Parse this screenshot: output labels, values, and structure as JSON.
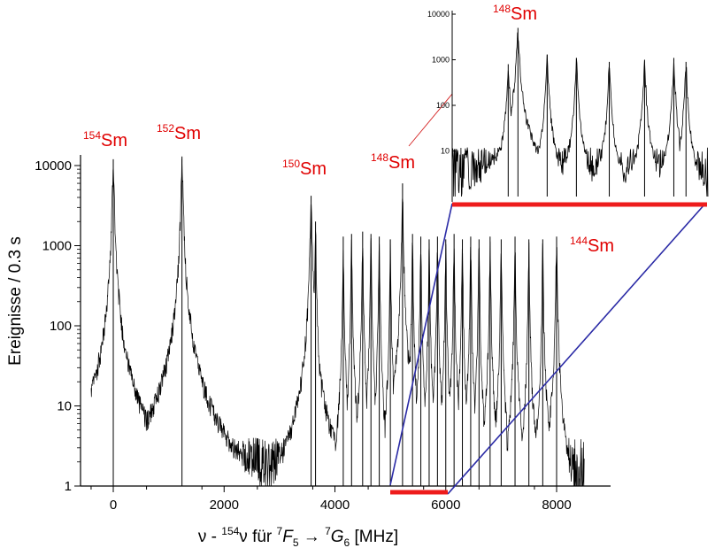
{
  "chart_data": [
    {
      "type": "line",
      "scale_y": "log",
      "xlim": [
        -400,
        8500
      ],
      "ylim": [
        1,
        20000
      ],
      "xticks": [
        "0",
        "2000",
        "4000",
        "6000",
        "8000"
      ],
      "xtick_values": [
        0,
        2000,
        4000,
        6000,
        8000
      ],
      "yticks": [
        "1",
        "10",
        "100",
        "1000",
        "10000"
      ],
      "ytick_values": [
        1,
        10,
        100,
        1000,
        10000
      ],
      "ylabel": "Ereignisse / 0.3 s",
      "xlabel": {
        "p1": "ν - ",
        "sup1": "154",
        "p2": "ν für ",
        "sup2": "7",
        "p3": "F",
        "sub3": "5",
        "arrow": " → ",
        "sup4": "7",
        "p5": "G",
        "sub5": "6",
        "p6": " [MHz]"
      },
      "baseline_noise": [
        1,
        4
      ],
      "peaks": [
        {
          "x": 0,
          "y": 12000,
          "width": 40,
          "isotope": "154Sm"
        },
        {
          "x": 1240,
          "y": 13000,
          "width": 40,
          "isotope": "152Sm"
        },
        {
          "x": 3570,
          "y": 4200,
          "width": 35,
          "isotope": "150Sm"
        },
        {
          "x": 3650,
          "y": 2000,
          "width": 25
        },
        {
          "x": 4150,
          "y": 1300,
          "width": 20
        },
        {
          "x": 4300,
          "y": 1400,
          "width": 20
        },
        {
          "x": 4500,
          "y": 1500,
          "width": 20
        },
        {
          "x": 4650,
          "y": 1400,
          "width": 20
        },
        {
          "x": 4800,
          "y": 1300,
          "width": 20
        },
        {
          "x": 5000,
          "y": 1200,
          "width": 20
        },
        {
          "x": 5220,
          "y": 6000,
          "width": 25,
          "isotope": "148Sm"
        },
        {
          "x": 5400,
          "y": 1400,
          "width": 20
        },
        {
          "x": 5550,
          "y": 1300,
          "width": 20
        },
        {
          "x": 5700,
          "y": 1200,
          "width": 20
        },
        {
          "x": 5850,
          "y": 1300,
          "width": 20
        },
        {
          "x": 6000,
          "y": 1200,
          "width": 20
        },
        {
          "x": 6150,
          "y": 1400,
          "width": 20
        },
        {
          "x": 6300,
          "y": 1200,
          "width": 20
        },
        {
          "x": 6450,
          "y": 1300,
          "width": 20
        },
        {
          "x": 6600,
          "y": 1200,
          "width": 20
        },
        {
          "x": 6800,
          "y": 1300,
          "width": 20
        },
        {
          "x": 7000,
          "y": 1200,
          "width": 20
        },
        {
          "x": 7250,
          "y": 1300,
          "width": 20
        },
        {
          "x": 7500,
          "y": 1200,
          "width": 20
        },
        {
          "x": 7750,
          "y": 1200,
          "width": 20
        },
        {
          "x": 8000,
          "y": 1300,
          "width": 25,
          "isotope": "144Sm"
        }
      ],
      "zoom_region": [
        4950,
        6000
      ]
    },
    {
      "type": "line",
      "scale_y": "log",
      "inset": true,
      "xlim": [
        4950,
        6000
      ],
      "ylim": [
        1,
        12000
      ],
      "yticks": [
        "10",
        "100",
        "1000",
        "10000"
      ],
      "ytick_values": [
        10,
        100,
        1000,
        10000
      ],
      "peaks": [
        {
          "x": 5180,
          "y": 800,
          "width": 10
        },
        {
          "x": 5220,
          "y": 5000,
          "width": 10,
          "isotope": "148Sm"
        },
        {
          "x": 5340,
          "y": 1300,
          "width": 9
        },
        {
          "x": 5460,
          "y": 1100,
          "width": 9
        },
        {
          "x": 5595,
          "y": 900,
          "width": 9
        },
        {
          "x": 5740,
          "y": 1000,
          "width": 9
        },
        {
          "x": 5860,
          "y": 1100,
          "width": 9
        },
        {
          "x": 5910,
          "y": 900,
          "width": 9
        }
      ]
    }
  ],
  "isotope_labels": [
    {
      "sup": "154",
      "text": "Sm"
    },
    {
      "sup": "152",
      "text": "Sm"
    },
    {
      "sup": "150",
      "text": "Sm"
    },
    {
      "sup": "148",
      "text": "Sm"
    },
    {
      "sup": "144",
      "text": "Sm"
    },
    {
      "sup": "148",
      "text": "Sm"
    }
  ],
  "colors": {
    "isotope_label": "#e00000",
    "zoom_bar": "#ee1c1c",
    "zoom_lines": "#2b2ba6",
    "arrow": "#d42020",
    "trace": "#000000"
  }
}
